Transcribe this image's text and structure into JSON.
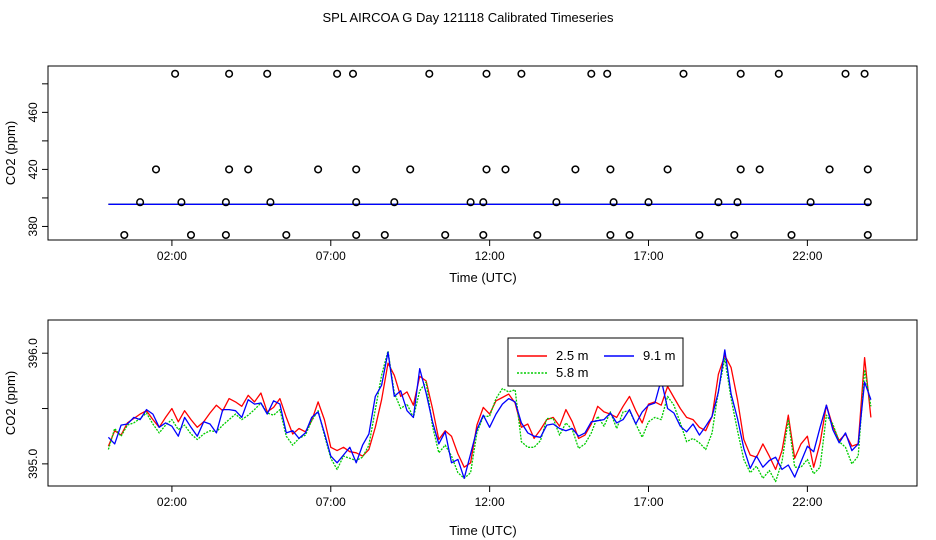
{
  "figure": {
    "title": "SPL AIRCOA G  Day 121118  Calibrated Timeseries"
  },
  "chart_data": [
    {
      "type": "scatter",
      "id": "top",
      "title": "",
      "xlabel": "Time (UTC)",
      "ylabel": "CO2 (ppm)",
      "xlim": [
        -1.9,
        25.45
      ],
      "ylim": [
        370.5,
        492.5
      ],
      "xticks": [
        2,
        7,
        12,
        17,
        22
      ],
      "xtick_labels": [
        "02:00",
        "07:00",
        "12:00",
        "17:00",
        "22:00"
      ],
      "yticks": [
        380,
        420,
        460
      ],
      "ytick_labels": [
        "380",
        "420",
        "460"
      ],
      "calibration_points": {
        "name": "calibration standards",
        "x": [
          0.5,
          2.6,
          3.7,
          5.6,
          7.8,
          8.7,
          10.6,
          11.8,
          13.5,
          15.8,
          16.4,
          18.6,
          19.7,
          21.5,
          23.9,
          1.0,
          2.3,
          3.7,
          5.1,
          7.8,
          9.0,
          11.4,
          11.8,
          14.1,
          15.9,
          17.0,
          19.2,
          19.8,
          22.1,
          23.9,
          1.5,
          3.8,
          4.4,
          6.6,
          7.8,
          9.5,
          11.9,
          12.5,
          14.7,
          15.8,
          17.6,
          19.9,
          20.5,
          22.7,
          23.9,
          2.1,
          3.8,
          5.0,
          7.2,
          7.7,
          10.1,
          11.9,
          13.0,
          15.2,
          15.7,
          18.1,
          19.9,
          21.1,
          23.2,
          23.8
        ],
        "y": [
          374,
          374,
          374,
          374,
          374,
          374,
          374,
          374,
          374,
          374,
          374,
          374,
          374,
          374,
          374,
          397,
          397,
          397,
          397,
          397,
          397,
          397,
          397,
          397,
          397,
          397,
          397,
          397,
          397,
          397,
          420,
          420,
          420,
          420,
          420,
          420,
          420,
          420,
          420,
          420,
          420,
          420,
          420,
          420,
          420,
          487,
          487,
          487,
          487,
          487,
          487,
          487,
          487,
          487,
          487,
          487,
          487,
          487,
          487,
          487
        ]
      },
      "series": [
        {
          "name": "2.5 m",
          "color": "#ff0000",
          "x": [
            0,
            24
          ],
          "values": [
            395.5,
            395.5
          ]
        },
        {
          "name": "5.8 m",
          "color": "#00cc00",
          "x": [
            0,
            24
          ],
          "values": [
            395.5,
            395.5
          ]
        },
        {
          "name": "9.1 m",
          "color": "#0000ff",
          "x": [
            0,
            24
          ],
          "values": [
            395.5,
            395.5
          ]
        }
      ]
    },
    {
      "type": "line",
      "id": "bottom",
      "title": "",
      "xlabel": "Time (UTC)",
      "ylabel": "CO2 (ppm)",
      "xlim": [
        -1.9,
        25.45
      ],
      "ylim": [
        394.8,
        396.3
      ],
      "xticks": [
        2,
        7,
        12,
        17,
        22
      ],
      "xtick_labels": [
        "02:00",
        "07:00",
        "12:00",
        "17:00",
        "22:00"
      ],
      "yticks": [
        395.0,
        396.0
      ],
      "ytick_labels": [
        "395.0",
        "396.0"
      ],
      "legend": {
        "position": "top-center",
        "entries": [
          "2.5 m",
          "5.8 m",
          "9.1 m"
        ]
      },
      "x": [
        0.0,
        0.2,
        0.4,
        0.6,
        0.8,
        1.0,
        1.2,
        1.4,
        1.6,
        1.8,
        2.0,
        2.2,
        2.4,
        2.6,
        2.8,
        3.0,
        3.2,
        3.4,
        3.6,
        3.8,
        4.0,
        4.2,
        4.4,
        4.6,
        4.8,
        5.0,
        5.2,
        5.4,
        5.6,
        5.8,
        6.0,
        6.2,
        6.4,
        6.6,
        6.8,
        7.0,
        7.2,
        7.4,
        7.6,
        7.8,
        8.0,
        8.2,
        8.4,
        8.6,
        8.8,
        9.0,
        9.2,
        9.4,
        9.6,
        9.8,
        10.0,
        10.2,
        10.4,
        10.6,
        10.8,
        11.0,
        11.2,
        11.4,
        11.6,
        11.8,
        12.0,
        12.2,
        12.4,
        12.6,
        12.8,
        13.0,
        13.2,
        13.4,
        13.6,
        13.8,
        14.0,
        14.2,
        14.4,
        14.6,
        14.8,
        15.0,
        15.2,
        15.4,
        15.6,
        15.8,
        16.0,
        16.2,
        16.4,
        16.6,
        16.8,
        17.0,
        17.2,
        17.4,
        17.6,
        17.8,
        18.0,
        18.2,
        18.4,
        18.6,
        18.8,
        19.0,
        19.2,
        19.4,
        19.6,
        19.8,
        20.0,
        20.2,
        20.4,
        20.6,
        20.8,
        21.0,
        21.2,
        21.4,
        21.6,
        21.8,
        22.0,
        22.2,
        22.4,
        22.6,
        22.8,
        23.0,
        23.2,
        23.4,
        23.6,
        23.8,
        24.0
      ],
      "series": [
        {
          "name": "2.5 m",
          "color": "#ff0000",
          "values": [
            395.16,
            395.3,
            395.26,
            395.37,
            395.41,
            395.45,
            395.48,
            395.4,
            395.33,
            395.42,
            395.5,
            395.38,
            395.48,
            395.4,
            395.33,
            395.38,
            395.46,
            395.53,
            395.48,
            395.59,
            395.56,
            395.52,
            395.62,
            395.56,
            395.64,
            395.47,
            395.51,
            395.59,
            395.42,
            395.27,
            395.32,
            395.29,
            395.39,
            395.56,
            395.4,
            395.15,
            395.12,
            395.15,
            395.11,
            395.1,
            395.07,
            395.13,
            395.33,
            395.58,
            395.91,
            395.8,
            395.61,
            395.65,
            395.53,
            395.79,
            395.75,
            395.5,
            395.22,
            395.3,
            395.25,
            395.09,
            394.97,
            395.01,
            395.35,
            395.51,
            395.45,
            395.57,
            395.6,
            395.63,
            395.55,
            395.33,
            395.36,
            395.23,
            395.31,
            395.4,
            395.42,
            395.34,
            395.49,
            395.38,
            395.23,
            395.26,
            395.36,
            395.52,
            395.47,
            395.45,
            395.42,
            395.52,
            395.61,
            395.48,
            395.37,
            395.54,
            395.56,
            395.53,
            395.7,
            395.6,
            395.5,
            395.42,
            395.4,
            395.33,
            395.3,
            395.43,
            395.81,
            395.98,
            395.87,
            395.58,
            395.22,
            395.08,
            395.06,
            395.18,
            395.07,
            394.95,
            395.12,
            395.44,
            395.05,
            395.18,
            395.25,
            394.97,
            395.19,
            395.53,
            395.34,
            395.21,
            395.27,
            395.16,
            395.18,
            395.96,
            395.42
          ]
        },
        {
          "name": "5.8 m",
          "color": "#00cc00",
          "values": [
            395.13,
            395.32,
            395.25,
            395.35,
            395.37,
            395.41,
            395.46,
            395.36,
            395.28,
            395.35,
            395.4,
            395.31,
            395.35,
            395.27,
            395.22,
            395.27,
            395.3,
            395.29,
            395.35,
            395.4,
            395.45,
            395.4,
            395.44,
            395.49,
            395.55,
            395.46,
            395.44,
            395.49,
            395.25,
            395.17,
            395.23,
            395.26,
            395.39,
            395.48,
            395.26,
            395.05,
            394.95,
            395.07,
            395.05,
            395.03,
            395.06,
            395.17,
            395.49,
            395.8,
            396.02,
            395.64,
            395.5,
            395.54,
            395.42,
            395.66,
            395.74,
            395.34,
            395.1,
            395.17,
            395.07,
            394.92,
            394.87,
            394.92,
            395.28,
            395.43,
            395.43,
            395.59,
            395.68,
            395.65,
            395.67,
            395.2,
            395.15,
            395.15,
            395.21,
            395.41,
            395.41,
            395.26,
            395.37,
            395.31,
            395.14,
            395.18,
            395.28,
            395.43,
            395.34,
            395.47,
            395.32,
            395.47,
            395.48,
            395.36,
            395.24,
            395.38,
            395.42,
            395.4,
            395.61,
            395.53,
            395.37,
            395.2,
            395.23,
            395.19,
            395.13,
            395.28,
            395.66,
            395.95,
            395.59,
            395.3,
            395.04,
            394.92,
            394.98,
            394.87,
            394.94,
            394.84,
            395.02,
            395.4,
            394.97,
            394.97,
            395.04,
            394.91,
            394.97,
            395.44,
            395.36,
            395.2,
            395.15,
            395.0,
            395.07,
            395.85,
            395.52
          ]
        },
        {
          "name": "9.1 m",
          "color": "#0000ff",
          "values": [
            395.24,
            395.18,
            395.35,
            395.36,
            395.42,
            395.4,
            395.49,
            395.45,
            395.33,
            395.37,
            395.34,
            395.25,
            395.42,
            395.33,
            395.25,
            395.38,
            395.36,
            395.28,
            395.49,
            395.49,
            395.48,
            395.42,
            395.58,
            395.54,
            395.55,
            395.45,
            395.57,
            395.54,
            395.28,
            395.3,
            395.23,
            395.28,
            395.42,
            395.47,
            395.28,
            395.07,
            395.01,
            395.08,
            395.15,
            395.01,
            395.17,
            395.27,
            395.61,
            395.71,
            396.01,
            395.61,
            395.66,
            395.48,
            395.42,
            395.86,
            395.64,
            395.38,
            395.18,
            395.29,
            395.01,
            395.04,
            394.87,
            395.09,
            395.31,
            395.44,
            395.33,
            395.45,
            395.54,
            395.59,
            395.56,
            395.37,
            395.28,
            395.25,
            395.24,
            395.35,
            395.36,
            395.32,
            395.3,
            395.32,
            395.25,
            395.28,
            395.38,
            395.39,
            395.4,
            395.46,
            395.37,
            395.4,
            395.49,
            395.36,
            395.47,
            395.53,
            395.55,
            395.76,
            395.5,
            395.46,
            395.34,
            395.29,
            395.36,
            395.26,
            395.34,
            395.43,
            395.65,
            396.03,
            395.63,
            395.41,
            395.14,
            394.96,
            395.07,
            394.97,
            395.03,
            395.06,
            394.95,
            394.99,
            394.88,
            395.02,
            395.16,
            395.11,
            395.33,
            395.53,
            395.31,
            395.19,
            395.28,
            395.12,
            395.18,
            395.74,
            395.58
          ]
        }
      ]
    }
  ]
}
